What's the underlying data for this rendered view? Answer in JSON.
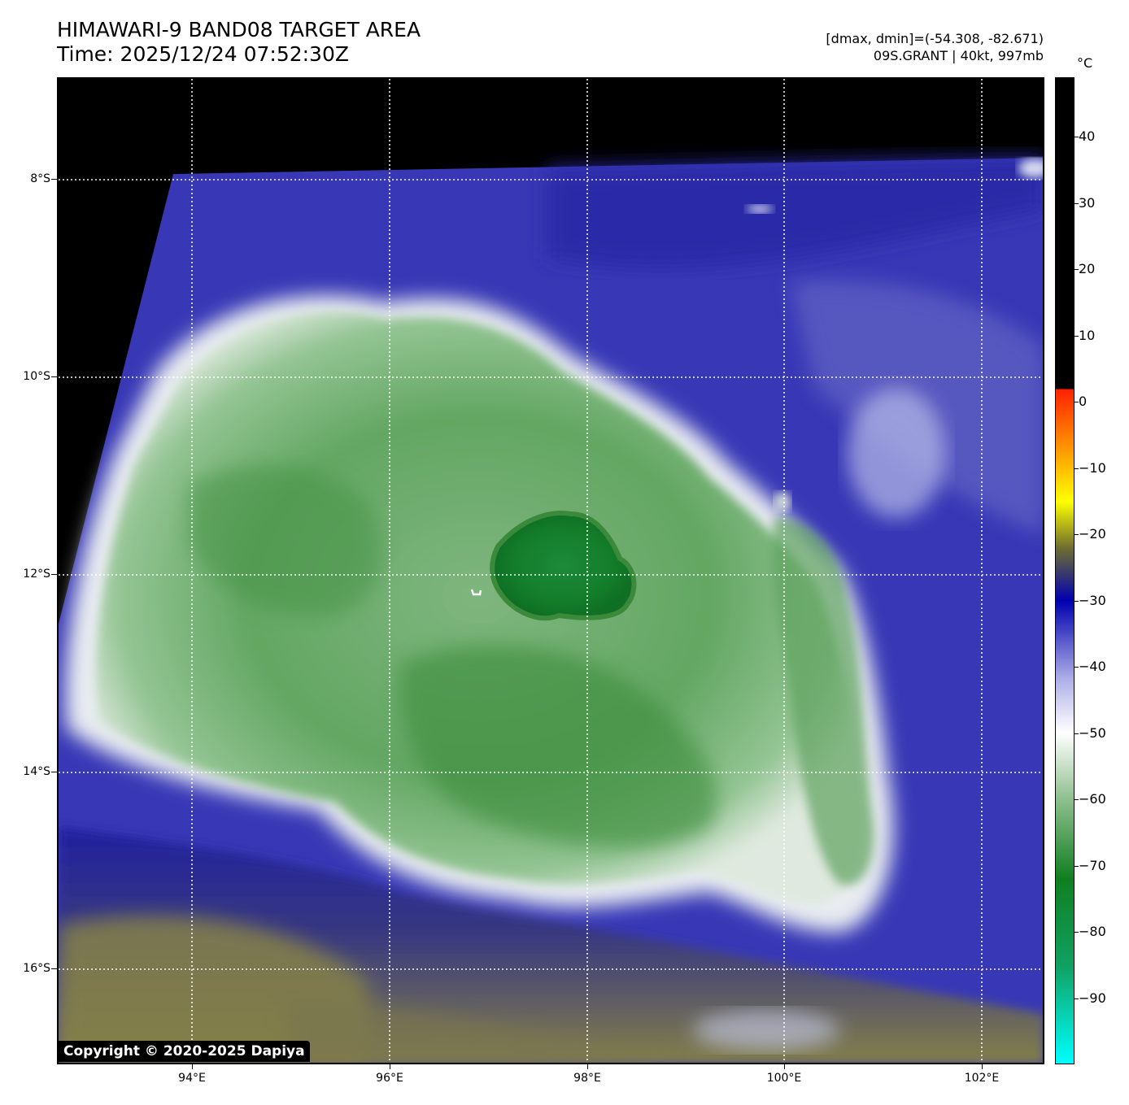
{
  "title": {
    "line1": "HIMAWARI-9 BAND08 TARGET AREA",
    "line2": "Time: 2025/12/24 07:52:30Z"
  },
  "info": {
    "line1": "[dmax, dmin]=(-54.308, -82.671)",
    "line2": "09S.GRANT | 40kt, 997mb"
  },
  "copyright": "Copyright © 2020-2025 Dapiya",
  "lat_labels": [
    "8°S",
    "10°S",
    "12°S",
    "14°S",
    "16°S"
  ],
  "lon_labels": [
    "94°E",
    "96°E",
    "98°E",
    "100°E",
    "102°E"
  ],
  "colorbar": {
    "unit": "°C",
    "labels": [
      "40",
      "30",
      "20",
      "10",
      "0",
      "−10",
      "−20",
      "−30",
      "−40",
      "−50",
      "−60",
      "−70",
      "−80",
      "−90"
    ],
    "colors": {
      "warm": "#000000",
      "red": "#ff2000",
      "yellow": "#ffff00",
      "olive": "#6f6f2f",
      "blue": "#0000b0",
      "white": "#ffffff",
      "green": "#107f20",
      "cyan": "#00ffff"
    }
  },
  "map_colors": {
    "space": "#000000",
    "clear_sky": "#3a3ab8",
    "moist_blue": "#2a2aa8",
    "cloud_white": "#e8ecf0",
    "cold_green": "#4f9a4f",
    "core_green": "#137d2a",
    "dry_olive": "#85814a"
  }
}
